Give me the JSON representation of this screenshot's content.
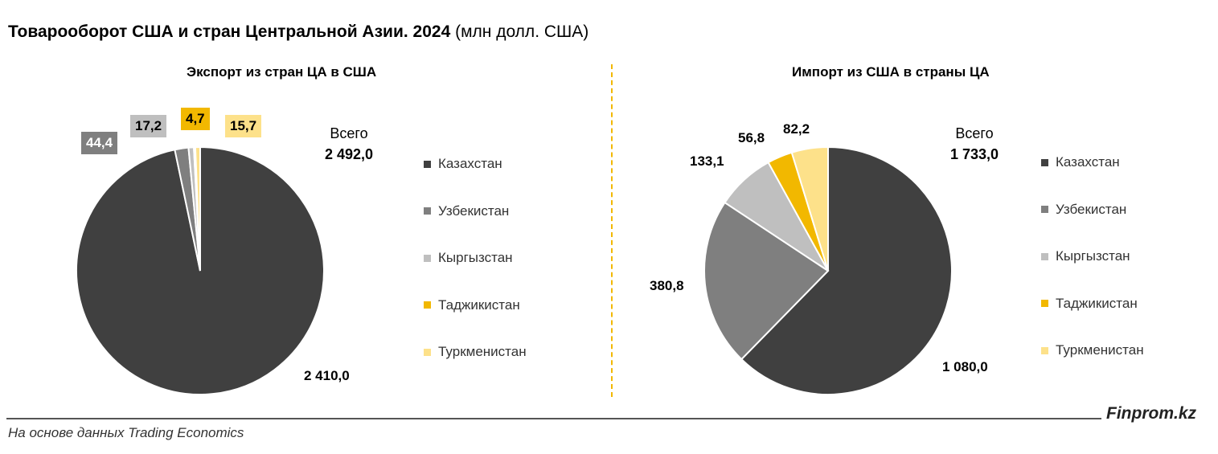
{
  "header": {
    "title_bold": "Товарооборот США и стран Центральной Азии. 2024",
    "title_rest": "(млн долл. США)"
  },
  "colors": {
    "Казахстан": "#404040",
    "Узбекистан": "#7f7f7f",
    "Кыргызстан": "#bfbfbf",
    "Таджикистан": "#f2b800",
    "Туркменистан": "#fde18a",
    "divider": "#f2b800"
  },
  "chart_data": [
    {
      "type": "pie",
      "title": "Экспорт из стран ЦА в США",
      "categories": [
        "Казахстан",
        "Узбекистан",
        "Кыргызстан",
        "Таджикистан",
        "Туркменистан"
      ],
      "values": [
        2410.0,
        44.4,
        17.2,
        4.7,
        15.7
      ],
      "labels": [
        "2 410,0",
        "44,4",
        "17,2",
        "4,7",
        "15,7"
      ],
      "total_label": "Всего",
      "total_value": "2 492,0",
      "legend": "right"
    },
    {
      "type": "pie",
      "title": "Импорт из США в страны ЦА",
      "categories": [
        "Казахстан",
        "Узбекистан",
        "Кыргызстан",
        "Таджикистан",
        "Туркменистан"
      ],
      "values": [
        1080.0,
        380.8,
        133.1,
        56.8,
        82.2
      ],
      "labels": [
        "1 080,0",
        "380,8",
        "133,1",
        "56,8",
        "82,2"
      ],
      "total_label": "Всего",
      "total_value": "1 733,0",
      "legend": "right"
    }
  ],
  "footer": {
    "brand": "Finprom.kz",
    "source": "На основе данных Trading Economics"
  }
}
